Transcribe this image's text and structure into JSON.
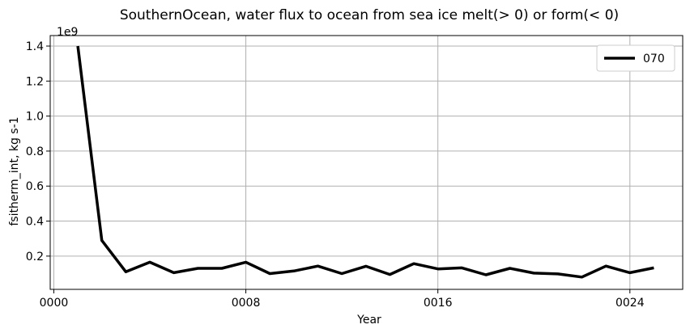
{
  "chart_data": {
    "type": "line",
    "title": "SouthernOcean, water flux to ocean from sea ice melt(> 0) or form(< 0)",
    "xlabel": "Year",
    "ylabel": "fsitherm_int, kg s-1",
    "y_offset_label": "1e9",
    "xlim": [
      -0.15,
      26.2
    ],
    "ylim": [
      0.01,
      1.46
    ],
    "x_ticks": [
      0,
      8,
      16,
      24
    ],
    "x_tick_labels": [
      "0000",
      "0008",
      "0016",
      "0024"
    ],
    "y_ticks": [
      0.2,
      0.4,
      0.6,
      0.8,
      1.0,
      1.2,
      1.4
    ],
    "y_tick_labels": [
      "0.2",
      "0.4",
      "0.6",
      "0.8",
      "1.0",
      "1.2",
      "1.4"
    ],
    "grid": true,
    "legend": "top-right",
    "series": [
      {
        "name": "070",
        "color": "#000000",
        "x": [
          1,
          2,
          3,
          4,
          5,
          6,
          7,
          8,
          9,
          10,
          11,
          12,
          13,
          14,
          15,
          16,
          17,
          18,
          19,
          20,
          21,
          22,
          23,
          24,
          25
        ],
        "y": [
          1.4,
          0.29,
          0.11,
          0.165,
          0.105,
          0.13,
          0.13,
          0.165,
          0.1,
          0.115,
          0.143,
          0.1,
          0.142,
          0.095,
          0.157,
          0.127,
          0.133,
          0.093,
          0.13,
          0.103,
          0.098,
          0.08,
          0.143,
          0.105,
          0.133
        ]
      }
    ]
  }
}
